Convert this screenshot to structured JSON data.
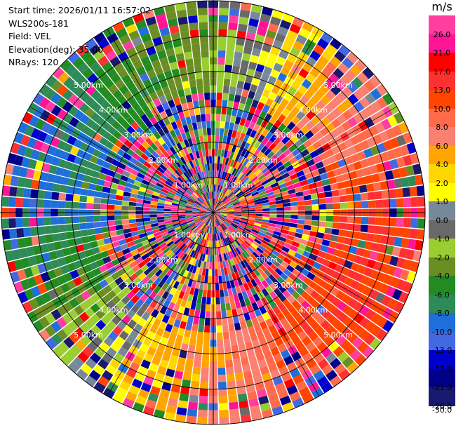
{
  "header": {
    "start_time": "Start time: 2026/01/11 16:57:02",
    "instrument": "WLS200s-181",
    "field": "Field: VEL",
    "elevation": "Elevation(deg): 35.00",
    "nrays": "NRays: 120"
  },
  "colorbar": {
    "unit": "m/s",
    "ticks": [
      "26.0",
      "21.0",
      "17.0",
      "13.0",
      "10.0",
      "8.0",
      "6.0",
      "4.0",
      "2.0",
      "1.0",
      "0.0",
      "-1.0",
      "-2.0",
      "-4.0",
      "-6.0",
      "-8.0",
      "-10.0",
      "-13.0",
      "-17.0",
      "-21.0",
      "-26.0",
      "-30.0"
    ],
    "colors": [
      "#ff3ea0",
      "#ff1493",
      "#ff0000",
      "#ff3030",
      "#ff4500",
      "#ff6b4a",
      "#fa8072",
      "#ffa500",
      "#ffd700",
      "#ffff00",
      "#778899",
      "#696969",
      "#9acd32",
      "#6b8e23",
      "#228b22",
      "#2e8b57",
      "#1e6fd9",
      "#4169e1",
      "#0000cd",
      "#00008b",
      "#191970"
    ]
  },
  "chart_data": {
    "type": "polar_ppi",
    "field": "VEL",
    "units": "m/s",
    "nrays": 120,
    "elevation_deg": 35.0,
    "max_range_km": 6.0,
    "range_ring_labels_km": [
      "1.00km",
      "2.00km",
      "3.00km",
      "4.00km",
      "5.00km"
    ],
    "pattern_by_azimuth": [
      {
        "azimuth_deg": 0,
        "dominant_velocity": -4.0
      },
      {
        "azimuth_deg": 30,
        "dominant_velocity": 2.0
      },
      {
        "azimuth_deg": 60,
        "dominant_velocity": 6.0
      },
      {
        "azimuth_deg": 90,
        "dominant_velocity": 10.0
      },
      {
        "azimuth_deg": 120,
        "dominant_velocity": 10.0
      },
      {
        "azimuth_deg": 150,
        "dominant_velocity": 8.0
      },
      {
        "azimuth_deg": 180,
        "dominant_velocity": 4.0
      },
      {
        "azimuth_deg": 210,
        "dominant_velocity": 1.0
      },
      {
        "azimuth_deg": 240,
        "dominant_velocity": -6.0
      },
      {
        "azimuth_deg": 270,
        "dominant_velocity": -10.0
      },
      {
        "azimuth_deg": 300,
        "dominant_velocity": -10.0
      },
      {
        "azimuth_deg": 330,
        "dominant_velocity": -6.0
      }
    ]
  }
}
